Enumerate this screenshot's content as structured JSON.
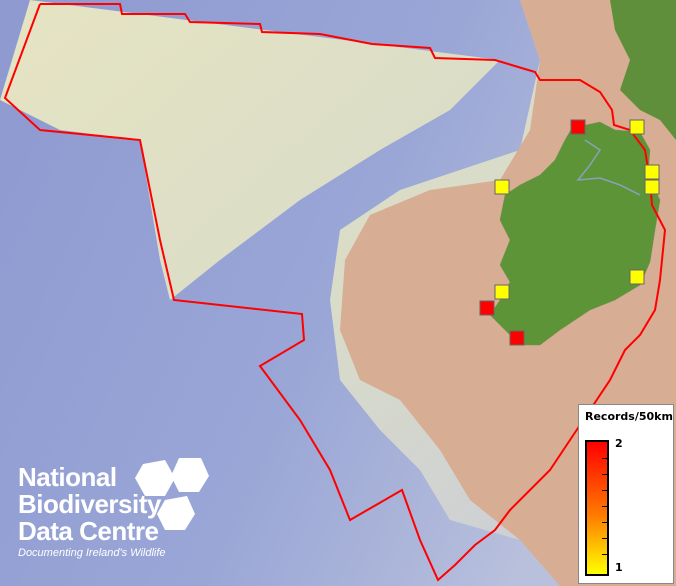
{
  "map": {
    "boundary_color": "#ff0000",
    "records": [
      {
        "value": 2
      },
      {
        "value": 1
      },
      {
        "value": 1
      },
      {
        "value": 1
      },
      {
        "value": 1
      },
      {
        "value": 1
      },
      {
        "value": 1
      },
      {
        "value": 2
      },
      {
        "value": 2
      }
    ]
  },
  "legend": {
    "title": "Records/50km",
    "max_label": "2",
    "min_label": "1",
    "max_color": "#ff0000",
    "min_color": "#ffff00"
  },
  "logo": {
    "line1": "National",
    "line2": "Biodiversity",
    "line3": "Data Centre",
    "tagline": "Documenting Ireland's Wildlife"
  }
}
